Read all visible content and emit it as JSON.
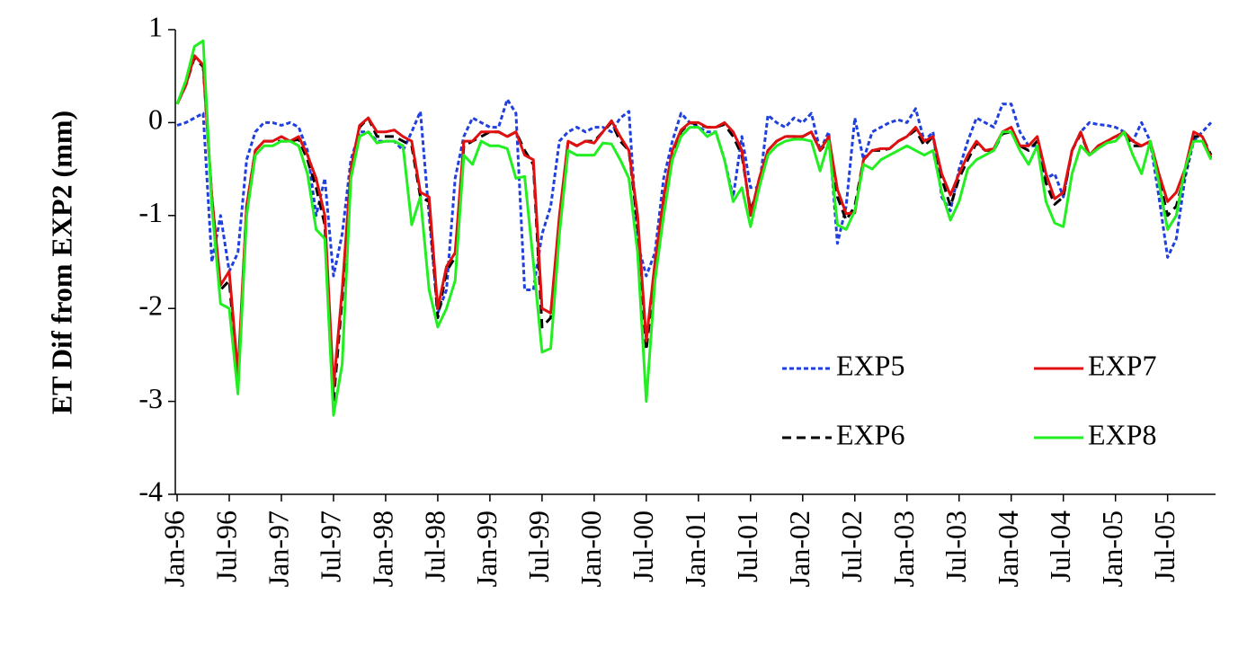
{
  "chart_data": {
    "type": "line",
    "y_label": "ET Dif from EXP2 (mm)",
    "categories": [
      "Jan-96",
      null,
      null,
      null,
      null,
      null,
      "Jul-96",
      null,
      null,
      null,
      null,
      null,
      "Jan-97",
      null,
      null,
      null,
      null,
      null,
      "Jul-97",
      null,
      null,
      null,
      null,
      null,
      "Jan-98",
      null,
      null,
      null,
      null,
      null,
      "Jul-98",
      null,
      null,
      null,
      null,
      null,
      "Jan-99",
      null,
      null,
      null,
      null,
      null,
      "Jul-99",
      null,
      null,
      null,
      null,
      null,
      "Jan-00",
      null,
      null,
      null,
      null,
      null,
      "Jul-00",
      null,
      null,
      null,
      null,
      null,
      "Jan-01",
      null,
      null,
      null,
      null,
      null,
      "Jul-01",
      null,
      null,
      null,
      null,
      null,
      "Jan-02",
      null,
      null,
      null,
      null,
      null,
      "Jul-02",
      null,
      null,
      null,
      null,
      null,
      "Jan-03",
      null,
      null,
      null,
      null,
      null,
      "Jul-03",
      null,
      null,
      null,
      null,
      null,
      "Jan-04",
      null,
      null,
      null,
      null,
      null,
      "Jul-04",
      null,
      null,
      null,
      null,
      null,
      "Jan-05",
      null,
      null,
      null,
      null,
      null,
      "Jul-05",
      null,
      null,
      null,
      null,
      null
    ],
    "ylim": [
      -4,
      1
    ],
    "yticks": [
      1,
      0,
      -1,
      -2,
      -3,
      -4
    ],
    "legend": "lower-right",
    "series": [
      {
        "name": "EXP5",
        "color": "#1f3fdf",
        "linestyle": "dotted",
        "values": [
          -0.03,
          0.0,
          0.05,
          0.1,
          -1.5,
          -1.0,
          -1.6,
          -1.4,
          -0.4,
          -0.1,
          0.0,
          0.0,
          -0.03,
          0.0,
          -0.05,
          -0.3,
          -1.0,
          -0.6,
          -1.65,
          -1.2,
          -0.4,
          -0.1,
          -0.1,
          -0.2,
          -0.2,
          -0.2,
          -0.3,
          -0.1,
          0.12,
          -1.0,
          -2.05,
          -1.8,
          -0.6,
          -0.15,
          0.05,
          0.0,
          -0.05,
          -0.05,
          0.25,
          0.1,
          -1.8,
          -1.8,
          -1.2,
          -0.9,
          -0.2,
          -0.1,
          -0.05,
          -0.1,
          -0.05,
          -0.05,
          -0.1,
          0.05,
          0.12,
          -1.3,
          -1.65,
          -1.4,
          -0.6,
          -0.2,
          0.1,
          0.0,
          -0.05,
          -0.1,
          -0.1,
          -0.4,
          -0.8,
          -0.15,
          -0.7,
          -0.7,
          0.08,
          0.0,
          -0.05,
          0.05,
          0.0,
          0.1,
          -0.3,
          -0.1,
          -1.3,
          -0.9,
          0.05,
          -0.4,
          -0.1,
          -0.05,
          0.0,
          0.03,
          0.0,
          0.15,
          -0.2,
          -0.1,
          -0.8,
          -0.95,
          -0.5,
          -0.2,
          0.05,
          0.0,
          -0.05,
          0.2,
          0.2,
          -0.1,
          -0.25,
          -0.25,
          -0.6,
          -0.55,
          -0.8,
          -0.3,
          -0.1,
          0.0,
          -0.02,
          -0.03,
          -0.05,
          -0.1,
          -0.2,
          0.0,
          -0.2,
          -0.8,
          -1.45,
          -1.25,
          -0.6,
          -0.2,
          -0.1,
          0.0
        ]
      },
      {
        "name": "EXP6",
        "color": "#000000",
        "linestyle": "dashed",
        "values": [
          0.2,
          0.4,
          0.7,
          0.6,
          -0.8,
          -1.8,
          -1.7,
          -2.8,
          -0.9,
          -0.3,
          -0.2,
          -0.2,
          -0.2,
          -0.2,
          -0.18,
          -0.4,
          -0.7,
          -1.1,
          -3.0,
          -1.9,
          -0.5,
          -0.05,
          0.05,
          -0.15,
          -0.15,
          -0.15,
          -0.2,
          -0.25,
          -0.8,
          -0.85,
          -2.1,
          -1.6,
          -1.45,
          -0.25,
          -0.2,
          -0.15,
          -0.1,
          -0.1,
          -0.15,
          -0.1,
          -0.3,
          -0.45,
          -2.2,
          -2.1,
          -1.1,
          -0.2,
          -0.25,
          -0.2,
          -0.2,
          -0.1,
          0.0,
          -0.2,
          -0.3,
          -1.1,
          -2.45,
          -1.6,
          -0.9,
          -0.35,
          -0.1,
          0.0,
          -0.02,
          -0.05,
          -0.05,
          -0.02,
          -0.15,
          -0.35,
          -0.95,
          -0.65,
          -0.3,
          -0.2,
          -0.15,
          -0.15,
          -0.15,
          -0.1,
          -0.3,
          -0.2,
          -0.8,
          -1.05,
          -0.9,
          -0.4,
          -0.3,
          -0.3,
          -0.28,
          -0.2,
          -0.15,
          -0.08,
          -0.25,
          -0.15,
          -0.6,
          -0.9,
          -0.6,
          -0.4,
          -0.22,
          -0.3,
          -0.3,
          -0.12,
          -0.1,
          -0.25,
          -0.3,
          -0.2,
          -0.65,
          -0.88,
          -0.8,
          -0.3,
          -0.12,
          -0.35,
          -0.28,
          -0.2,
          -0.15,
          -0.12,
          -0.25,
          -0.25,
          -0.22,
          -0.6,
          -1.0,
          -0.9,
          -0.55,
          -0.15,
          -0.15,
          -0.35
        ]
      },
      {
        "name": "EXP7",
        "color": "#e01010",
        "linestyle": "solid",
        "values": [
          0.2,
          0.4,
          0.72,
          0.62,
          -0.8,
          -1.75,
          -1.6,
          -2.7,
          -0.9,
          -0.3,
          -0.2,
          -0.2,
          -0.15,
          -0.2,
          -0.15,
          -0.35,
          -0.6,
          -1.0,
          -2.85,
          -1.8,
          -0.5,
          -0.03,
          0.05,
          -0.1,
          -0.1,
          -0.08,
          -0.15,
          -0.2,
          -0.75,
          -0.8,
          -2.0,
          -1.55,
          -1.4,
          -0.2,
          -0.2,
          -0.1,
          -0.1,
          -0.1,
          -0.15,
          -0.1,
          -0.35,
          -0.4,
          -2.0,
          -2.05,
          -1.0,
          -0.2,
          -0.25,
          -0.2,
          -0.22,
          -0.1,
          0.02,
          -0.15,
          -0.3,
          -1.0,
          -2.35,
          -1.5,
          -0.8,
          -0.3,
          -0.08,
          0.0,
          0.0,
          -0.05,
          -0.05,
          0.0,
          -0.1,
          -0.3,
          -1.0,
          -0.6,
          -0.3,
          -0.2,
          -0.15,
          -0.15,
          -0.15,
          -0.1,
          -0.3,
          -0.15,
          -0.72,
          -0.98,
          -0.97,
          -0.4,
          -0.3,
          -0.28,
          -0.28,
          -0.2,
          -0.15,
          -0.05,
          -0.2,
          -0.15,
          -0.55,
          -0.78,
          -0.55,
          -0.35,
          -0.2,
          -0.3,
          -0.28,
          -0.1,
          -0.05,
          -0.25,
          -0.25,
          -0.15,
          -0.55,
          -0.82,
          -0.75,
          -0.3,
          -0.1,
          -0.35,
          -0.25,
          -0.2,
          -0.15,
          -0.1,
          -0.2,
          -0.25,
          -0.2,
          -0.55,
          -0.85,
          -0.75,
          -0.5,
          -0.1,
          -0.15,
          -0.38
        ]
      },
      {
        "name": "EXP8",
        "color": "#22ee22",
        "linestyle": "solid",
        "values": [
          0.2,
          0.45,
          0.82,
          0.88,
          -0.9,
          -1.95,
          -2.0,
          -2.92,
          -1.0,
          -0.35,
          -0.25,
          -0.25,
          -0.2,
          -0.2,
          -0.25,
          -0.55,
          -1.15,
          -1.25,
          -3.15,
          -2.6,
          -0.6,
          -0.15,
          -0.1,
          -0.22,
          -0.2,
          -0.2,
          -0.25,
          -1.1,
          -0.8,
          -1.8,
          -2.2,
          -2.0,
          -1.7,
          -0.35,
          -0.45,
          -0.2,
          -0.25,
          -0.25,
          -0.28,
          -0.6,
          -0.58,
          -1.5,
          -2.47,
          -2.43,
          -1.2,
          -0.3,
          -0.35,
          -0.35,
          -0.35,
          -0.22,
          -0.23,
          -0.4,
          -0.6,
          -1.4,
          -3.0,
          -1.7,
          -1.0,
          -0.4,
          -0.15,
          -0.05,
          -0.05,
          -0.15,
          -0.1,
          -0.4,
          -0.85,
          -0.7,
          -1.12,
          -0.7,
          -0.35,
          -0.25,
          -0.2,
          -0.18,
          -0.18,
          -0.2,
          -0.52,
          -0.2,
          -1.1,
          -1.15,
          -0.95,
          -0.45,
          -0.5,
          -0.4,
          -0.35,
          -0.3,
          -0.25,
          -0.3,
          -0.35,
          -0.3,
          -0.75,
          -1.05,
          -0.85,
          -0.5,
          -0.4,
          -0.35,
          -0.3,
          -0.1,
          -0.1,
          -0.3,
          -0.45,
          -0.25,
          -0.85,
          -1.08,
          -1.12,
          -0.55,
          -0.25,
          -0.35,
          -0.28,
          -0.22,
          -0.2,
          -0.1,
          -0.35,
          -0.55,
          -0.2,
          -0.65,
          -1.15,
          -1.0,
          -0.5,
          -0.2,
          -0.2,
          -0.4
        ]
      }
    ]
  }
}
